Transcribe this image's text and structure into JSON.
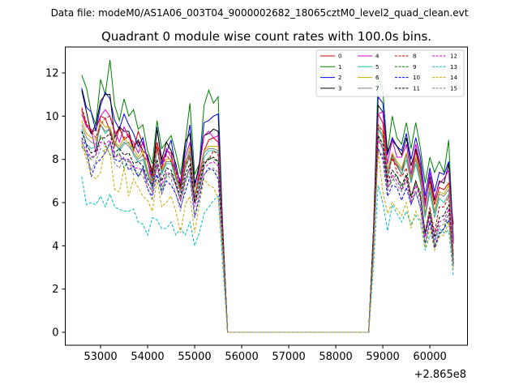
{
  "suptitle": "Data file: modeM0/AS1A06_003T04_9000002682_18065cztM0_level2_quad_clean.evt",
  "chart_data": {
    "type": "line",
    "title": "Quadrant 0 module wise count rates with 100.0s bins.",
    "xlabel": "",
    "ylabel": "",
    "x_offset_label": "+2.865e8",
    "xlim": [
      52250,
      60800
    ],
    "ylim": [
      -0.6,
      13.2
    ],
    "x_ticks": [
      53000,
      54000,
      55000,
      56000,
      57000,
      58000,
      59000,
      60000
    ],
    "x_tick_labels": [
      "53000",
      "54000",
      "55000",
      "56000",
      "57000",
      "58000",
      "59000",
      "60000"
    ],
    "y_ticks": [
      0,
      2,
      4,
      6,
      8,
      10,
      12
    ],
    "y_tick_labels": [
      "0",
      "2",
      "4",
      "6",
      "8",
      "10",
      "12"
    ],
    "legend_position": "upper right",
    "legend_columns": 4,
    "x_start": 52600,
    "bin_size": 100,
    "gap_zero_bins": 31,
    "series": [
      {
        "name": "0",
        "color": "#cc0000",
        "style": "solid",
        "seg1": [
          10.3,
          9.6,
          9.2,
          9.4,
          10.0,
          9.9,
          9.3,
          8.6,
          9.5,
          8.9,
          9.1,
          8.4,
          9.3,
          8.7,
          8.1,
          7.5,
          8.8,
          7.9,
          8.4,
          8.3,
          7.2,
          6.8,
          7.9,
          8.2,
          6.3,
          7.3,
          8.4,
          8.9,
          9.0,
          8.8,
          4.5
        ],
        "seg2": [
          4.5,
          10.1,
          9.7,
          7.5,
          8.0,
          7.7,
          7.3,
          8.3,
          7.1,
          8.4,
          7.3,
          6.1,
          7.0,
          5.9,
          6.7,
          6.6,
          6.9,
          5.0
        ]
      },
      {
        "name": "1",
        "color": "#008000",
        "style": "solid",
        "seg1": [
          11.9,
          11.3,
          10.2,
          9.6,
          11.7,
          11.0,
          12.6,
          10.5,
          9.8,
          10.8,
          10.0,
          10.3,
          9.4,
          9.6,
          8.4,
          7.8,
          9.8,
          8.5,
          8.8,
          9.1,
          8.3,
          7.3,
          8.8,
          10.6,
          7.3,
          7.8,
          10.5,
          11.2,
          10.6,
          10.9,
          4.6
        ],
        "seg2": [
          4.6,
          11.8,
          11.2,
          8.3,
          10.0,
          9.0,
          8.7,
          9.7,
          8.5,
          9.7,
          8.5,
          6.9,
          8.1,
          7.4,
          7.9,
          7.4,
          8.9,
          4.2
        ]
      },
      {
        "name": "2",
        "color": "#0000ee",
        "style": "solid",
        "seg1": [
          11.3,
          10.4,
          10.2,
          9.3,
          10.5,
          11.1,
          10.8,
          9.8,
          9.4,
          10.1,
          9.6,
          9.2,
          8.6,
          9.0,
          7.9,
          7.1,
          9.5,
          7.8,
          8.3,
          8.9,
          7.5,
          7.0,
          8.4,
          9.6,
          6.9,
          7.6,
          9.7,
          9.8,
          10.0,
          10.1,
          4.5
        ],
        "seg2": [
          4.5,
          10.9,
          10.6,
          8.2,
          9.0,
          8.6,
          8.4,
          9.2,
          8.0,
          9.0,
          8.1,
          6.3,
          7.6,
          6.5,
          7.4,
          7.3,
          7.9,
          4.3
        ]
      },
      {
        "name": "3",
        "color": "#000000",
        "style": "solid",
        "seg1": [
          11.2,
          10.2,
          9.2,
          9.6,
          10.7,
          11.0,
          11.0,
          9.0,
          9.5,
          9.3,
          9.3,
          8.5,
          8.9,
          8.4,
          8.2,
          7.3,
          9.4,
          8.0,
          8.8,
          8.4,
          7.8,
          6.7,
          8.8,
          9.2,
          6.7,
          7.8,
          9.1,
          9.2,
          9.4,
          9.3,
          4.7
        ],
        "seg2": [
          4.7,
          10.5,
          10.2,
          8.3,
          8.9,
          8.6,
          8.2,
          9.0,
          7.7,
          8.5,
          7.6,
          5.9,
          7.2,
          6.1,
          7.0,
          6.9,
          7.8,
          4.1
        ]
      },
      {
        "name": "4",
        "color": "#cc00cc",
        "style": "solid",
        "seg1": [
          10.1,
          9.5,
          9.4,
          8.3,
          10.0,
          10.3,
          10.0,
          9.3,
          8.8,
          9.5,
          9.0,
          8.8,
          8.3,
          8.8,
          8.0,
          6.7,
          8.6,
          7.6,
          8.5,
          8.1,
          7.5,
          6.9,
          8.1,
          8.8,
          6.2,
          7.6,
          9.1,
          9.3,
          9.0,
          9.1,
          4.4
        ],
        "seg2": [
          4.4,
          10.1,
          10.2,
          7.8,
          8.9,
          8.1,
          8.1,
          8.7,
          7.3,
          8.7,
          7.8,
          5.8,
          7.4,
          6.2,
          6.9,
          7.1,
          7.5,
          4.1
        ]
      },
      {
        "name": "5",
        "color": "#20c0a0",
        "style": "solid",
        "seg1": [
          9.4,
          8.7,
          8.5,
          8.6,
          9.6,
          9.2,
          9.4,
          8.8,
          8.4,
          8.7,
          8.8,
          8.2,
          7.9,
          8.0,
          7.3,
          6.6,
          8.5,
          7.3,
          7.8,
          7.8,
          7.1,
          6.5,
          7.5,
          8.2,
          6.2,
          7.0,
          8.1,
          8.4,
          8.4,
          8.3,
          4.2
        ],
        "seg2": [
          4.2,
          9.4,
          9.0,
          7.2,
          8.1,
          7.8,
          7.3,
          8.0,
          6.9,
          7.8,
          6.9,
          5.3,
          6.5,
          5.3,
          6.2,
          6.0,
          6.4,
          3.5
        ]
      },
      {
        "name": "6",
        "color": "#c8a800",
        "style": "solid",
        "seg1": [
          9.8,
          9.2,
          9.0,
          8.9,
          9.8,
          9.5,
          9.5,
          8.8,
          8.6,
          9.0,
          8.7,
          8.5,
          8.1,
          8.4,
          7.5,
          7.0,
          8.6,
          7.5,
          8.0,
          8.0,
          7.3,
          6.6,
          7.8,
          8.6,
          6.4,
          7.2,
          8.4,
          8.6,
          8.6,
          8.6,
          4.3
        ],
        "seg2": [
          4.3,
          9.6,
          9.3,
          7.5,
          8.3,
          7.9,
          7.6,
          8.3,
          7.1,
          8.1,
          7.2,
          5.5,
          6.8,
          5.6,
          6.5,
          6.4,
          6.8,
          3.7
        ]
      },
      {
        "name": "7",
        "color": "#7f7f7f",
        "style": "solid",
        "seg1": [
          9.6,
          9.0,
          8.8,
          8.7,
          9.6,
          9.3,
          9.4,
          8.7,
          8.5,
          8.8,
          8.6,
          8.3,
          8.0,
          8.2,
          7.4,
          6.8,
          8.5,
          7.4,
          7.9,
          7.9,
          7.2,
          6.5,
          7.7,
          8.4,
          6.3,
          7.1,
          8.3,
          8.5,
          8.5,
          8.4,
          4.2
        ],
        "seg2": [
          4.2,
          9.5,
          9.1,
          7.4,
          8.2,
          7.8,
          7.5,
          8.2,
          7.0,
          8.0,
          7.0,
          5.4,
          6.7,
          5.5,
          6.4,
          6.3,
          6.6,
          3.6
        ]
      },
      {
        "name": "8",
        "color": "#cc0000",
        "style": "dashed",
        "seg1": [
          10.4,
          9.7,
          9.3,
          9.0,
          9.6,
          9.9,
          10.0,
          9.2,
          9.4,
          9.0,
          9.2,
          8.6,
          8.8,
          8.2,
          7.9,
          7.2,
          8.6,
          7.6,
          8.2,
          7.9,
          7.4,
          6.6,
          7.7,
          8.1,
          6.1,
          7.2,
          7.9,
          8.0,
          8.4,
          8.2,
          4.3
        ],
        "seg2": [
          4.3,
          9.6,
          9.3,
          7.0,
          8.2,
          7.4,
          7.2,
          7.6,
          6.3,
          7.0,
          6.3,
          4.6,
          5.8,
          4.6,
          5.8,
          5.8,
          6.3,
          3.3
        ]
      },
      {
        "name": "9",
        "color": "#008000",
        "style": "dashed",
        "seg1": [
          8.6,
          8.3,
          8.0,
          8.2,
          9.1,
          8.7,
          8.2,
          8.1,
          8.3,
          7.6,
          8.0,
          7.6,
          7.2,
          7.6,
          6.9,
          6.5,
          7.8,
          6.6,
          7.2,
          7.4,
          6.8,
          6.1,
          7.0,
          7.6,
          6.0,
          6.6,
          7.7,
          8.1,
          8.0,
          7.9,
          4.0
        ],
        "seg2": [
          4.0,
          9.1,
          8.5,
          6.7,
          7.0,
          7.3,
          6.6,
          7.3,
          6.3,
          6.9,
          6.5,
          4.5,
          5.6,
          3.9,
          4.5,
          4.8,
          5.5,
          3.1
        ]
      },
      {
        "name": "10",
        "color": "#0000ee",
        "style": "dashed",
        "seg1": [
          9.0,
          8.6,
          7.2,
          7.8,
          8.0,
          8.3,
          8.8,
          8.0,
          7.9,
          8.1,
          7.5,
          7.7,
          7.2,
          7.6,
          6.6,
          6.3,
          7.3,
          6.4,
          7.0,
          6.8,
          6.4,
          5.8,
          6.5,
          7.2,
          5.3,
          6.2,
          7.3,
          7.6,
          7.5,
          7.1,
          3.9
        ],
        "seg2": [
          3.9,
          8.5,
          8.0,
          6.3,
          6.8,
          6.7,
          6.1,
          6.7,
          5.9,
          6.5,
          5.8,
          4.1,
          5.1,
          3.9,
          4.6,
          4.8,
          5.2,
          3.1
        ]
      },
      {
        "name": "11",
        "color": "#000000",
        "style": "dashed",
        "seg1": [
          9.3,
          8.7,
          8.3,
          8.4,
          9.0,
          9.0,
          9.2,
          8.3,
          8.5,
          8.2,
          8.3,
          7.8,
          7.9,
          7.7,
          7.1,
          6.8,
          8.0,
          7.0,
          7.6,
          7.5,
          6.9,
          6.3,
          7.3,
          7.8,
          6.0,
          6.8,
          7.8,
          8.0,
          8.1,
          7.9,
          4.1
        ],
        "seg2": [
          4.1,
          9.1,
          8.7,
          6.9,
          7.5,
          7.2,
          6.8,
          7.3,
          6.2,
          7.0,
          6.3,
          4.6,
          5.6,
          4.4,
          5.3,
          5.4,
          5.9,
          3.2
        ]
      },
      {
        "name": "12",
        "color": "#cc00cc",
        "style": "dashed",
        "seg1": [
          8.8,
          8.4,
          8.1,
          8.2,
          8.8,
          8.7,
          8.9,
          8.1,
          8.2,
          8.0,
          8.0,
          7.6,
          7.6,
          7.5,
          6.9,
          6.5,
          7.8,
          6.8,
          7.4,
          7.3,
          6.8,
          6.1,
          7.1,
          7.6,
          5.8,
          6.6,
          7.6,
          7.8,
          7.9,
          7.7,
          4.0
        ],
        "seg2": [
          4.0,
          8.9,
          8.5,
          6.7,
          7.3,
          7.0,
          6.6,
          7.1,
          6.0,
          6.8,
          6.1,
          4.4,
          5.4,
          4.2,
          5.1,
          5.2,
          5.7,
          3.1
        ]
      },
      {
        "name": "13",
        "color": "#00bbbb",
        "style": "dashed",
        "seg1": [
          7.2,
          5.9,
          6.0,
          5.9,
          6.3,
          5.8,
          6.4,
          5.8,
          5.7,
          5.6,
          5.6,
          5.7,
          5.1,
          5.0,
          4.5,
          5.3,
          5.2,
          4.8,
          4.8,
          5.1,
          4.5,
          4.8,
          4.5,
          5.1,
          4.0,
          4.6,
          5.5,
          5.8,
          6.1,
          6.3,
          3.0
        ],
        "seg2": [
          3.0,
          6.8,
          6.0,
          4.7,
          5.9,
          5.5,
          5.1,
          5.6,
          5.0,
          5.4,
          5.1,
          3.8,
          4.5,
          4.3,
          4.8,
          4.6,
          4.7,
          2.6
        ]
      },
      {
        "name": "14",
        "color": "#c8a800",
        "style": "dashed",
        "seg1": [
          8.7,
          8.0,
          7.3,
          7.1,
          7.4,
          8.6,
          8.3,
          6.6,
          6.5,
          7.6,
          6.3,
          7.1,
          6.7,
          6.3,
          6.1,
          5.6,
          7.1,
          5.8,
          6.0,
          6.3,
          5.6,
          4.6,
          5.9,
          6.3,
          4.6,
          5.9,
          7.1,
          6.8,
          6.7,
          6.2,
          3.5
        ],
        "seg2": [
          3.5,
          8.4,
          6.5,
          5.5,
          6.0,
          5.7,
          5.4,
          6.0,
          4.8,
          5.6,
          5.2,
          3.9,
          4.8,
          3.8,
          4.4,
          4.5,
          5.1,
          2.9
        ]
      },
      {
        "name": "15",
        "color": "#7f7f7f",
        "style": "dashed",
        "seg1": [
          8.9,
          8.2,
          7.5,
          7.9,
          8.5,
          8.3,
          8.7,
          7.8,
          7.6,
          8.0,
          7.9,
          7.3,
          7.4,
          7.2,
          6.7,
          6.1,
          7.7,
          6.4,
          7.3,
          7.1,
          6.4,
          5.6,
          6.9,
          7.4,
          5.4,
          6.4,
          7.3,
          7.5,
          7.6,
          7.4,
          3.8
        ],
        "seg2": [
          3.8,
          8.4,
          8.2,
          6.5,
          7.2,
          6.8,
          6.5,
          7.0,
          5.9,
          6.5,
          5.7,
          4.1,
          5.2,
          4.0,
          4.9,
          5.0,
          5.5,
          3.0
        ]
      }
    ]
  }
}
